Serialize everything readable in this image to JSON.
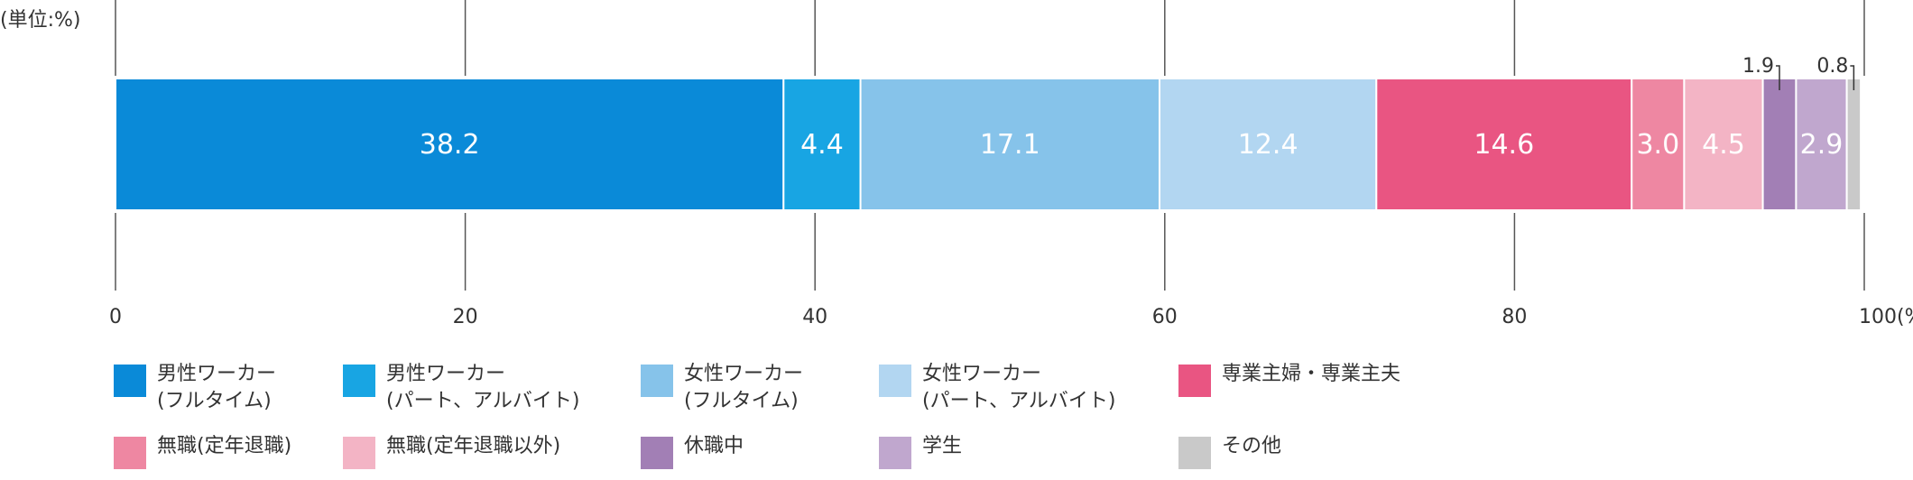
{
  "unit_note": "(単位:%)",
  "chart_data": {
    "type": "bar",
    "orientation": "horizontal",
    "stacked": true,
    "unit": "%",
    "xlim": [
      0,
      100
    ],
    "x_ticks": [
      "0",
      "20",
      "40",
      "60",
      "80",
      "100(%)"
    ],
    "grid": true,
    "legend_placement": "bottom",
    "series": [
      {
        "name": "男性ワーカー（フルタイム）",
        "value": 38.2,
        "label": "38.2",
        "color": "#0a8ad8"
      },
      {
        "name": "男性ワーカー（パート、アルバイト）",
        "value": 4.4,
        "label": "4.4",
        "color": "#18a5e3"
      },
      {
        "name": "女性ワーカー（フルタイム）",
        "value": 17.1,
        "label": "17.1",
        "color": "#86c3ea"
      },
      {
        "name": "女性ワーカー（パート、アルバイト）",
        "value": 12.4,
        "label": "12.4",
        "color": "#b2d6f1"
      },
      {
        "name": "専業主婦・専業主夫",
        "value": 14.6,
        "label": "14.6",
        "color": "#e95582"
      },
      {
        "name": "無職（定年退職）",
        "value": 3.0,
        "label": "3.0",
        "color": "#ee87a2"
      },
      {
        "name": "無職（定年退職以外）",
        "value": 4.5,
        "label": "4.5",
        "color": "#f3b4c5"
      },
      {
        "name": "休職中",
        "value": 1.9,
        "label": "1.9",
        "color": "#a27fb5"
      },
      {
        "name": "学生",
        "value": 2.9,
        "label": "2.9",
        "color": "#c0a7ce"
      },
      {
        "name": "その他",
        "value": 0.8,
        "label": "0.8",
        "color": "#c9c9c9"
      }
    ]
  },
  "legend": {
    "items": [
      {
        "text": "男性ワーカー\n(フルタイム)",
        "color": "#0a8ad8"
      },
      {
        "text": "男性ワーカー\n(パート、アルバイト)",
        "color": "#18a5e3"
      },
      {
        "text": "女性ワーカー\n(フルタイム)",
        "color": "#86c3ea"
      },
      {
        "text": "女性ワーカー\n(パート、アルバイト)",
        "color": "#b2d6f1"
      },
      {
        "text": "専業主婦・専業主夫",
        "color": "#e95582"
      },
      {
        "text": "無職(定年退職)",
        "color": "#ee87a2"
      },
      {
        "text": "無職(定年退職以外)",
        "color": "#f3b4c5"
      },
      {
        "text": "休職中",
        "color": "#a27fb5"
      },
      {
        "text": "学生",
        "color": "#c0a7ce"
      },
      {
        "text": "その他",
        "color": "#c9c9c9"
      }
    ]
  }
}
